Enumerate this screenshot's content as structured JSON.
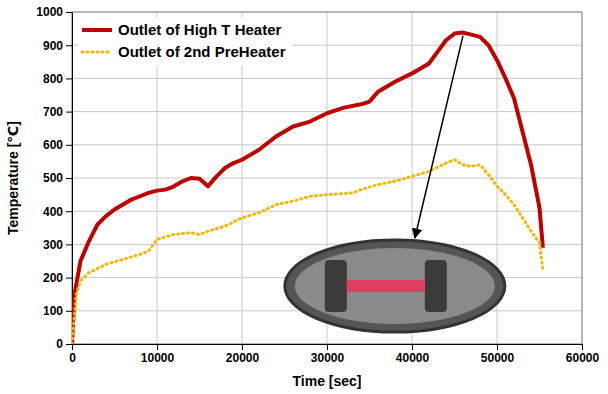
{
  "chart_data": {
    "type": "line",
    "x_label": "Time [sec]",
    "y_label": "Temperature [℃]",
    "xlim": [
      0,
      60000
    ],
    "xticks": [
      0,
      10000,
      20000,
      30000,
      40000,
      50000,
      60000
    ],
    "ylim": [
      0,
      1000
    ],
    "yticks": [
      0,
      100,
      200,
      300,
      400,
      500,
      600,
      700,
      800,
      900,
      1000
    ],
    "grid": true,
    "legend": "upper left",
    "series": [
      {
        "name": "Outlet of High T Heater",
        "color": "#c00000",
        "line_style": "solid",
        "x": [
          0,
          300,
          1000,
          2000,
          3000,
          4000,
          5000,
          6000,
          7000,
          8000,
          9000,
          10000,
          11000,
          12000,
          13000,
          14000,
          15000,
          16000,
          17000,
          18000,
          19000,
          20000,
          22000,
          24000,
          26000,
          28000,
          30000,
          32000,
          34000,
          35000,
          36000,
          38000,
          40000,
          42000,
          43000,
          44000,
          45000,
          46000,
          47000,
          48000,
          49000,
          50000,
          51000,
          52000,
          53000,
          54000,
          55000,
          55400
        ],
        "values": [
          0,
          150,
          250,
          310,
          360,
          385,
          405,
          420,
          435,
          445,
          455,
          462,
          465,
          475,
          490,
          500,
          498,
          475,
          505,
          530,
          545,
          555,
          585,
          625,
          655,
          670,
          695,
          712,
          722,
          730,
          760,
          790,
          815,
          845,
          880,
          915,
          935,
          938,
          932,
          925,
          900,
          855,
          800,
          740,
          640,
          540,
          410,
          290
        ]
      },
      {
        "name": "Outlet of 2nd PreHeater",
        "color": "#f5b800",
        "line_style": "dotted",
        "x": [
          0,
          500,
          1000,
          2000,
          4000,
          6000,
          8000,
          9000,
          10000,
          12000,
          14000,
          15000,
          16000,
          18000,
          20000,
          22000,
          24000,
          26000,
          28000,
          30000,
          33000,
          34000,
          36000,
          38000,
          40000,
          42000,
          44000,
          45000,
          46000,
          47000,
          48000,
          49000,
          50000,
          51000,
          52000,
          53000,
          54000,
          55000,
          55400
        ],
        "values": [
          0,
          150,
          190,
          215,
          240,
          255,
          270,
          280,
          315,
          330,
          335,
          330,
          340,
          355,
          380,
          395,
          420,
          430,
          445,
          450,
          455,
          465,
          480,
          490,
          505,
          520,
          545,
          555,
          540,
          535,
          540,
          510,
          475,
          450,
          420,
          380,
          340,
          305,
          225
        ]
      }
    ]
  }
}
